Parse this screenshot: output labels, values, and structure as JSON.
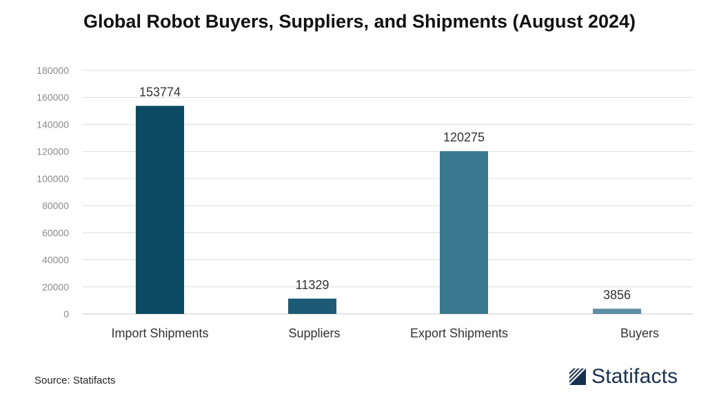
{
  "colors": {
    "bar_dark": "#0b4a63",
    "bar_mid": "#1d5a75",
    "bar_light": "#3a7890",
    "bar_lightest": "#5b8ea3",
    "grid": "#dcdcdc",
    "brand": "#17304f"
  },
  "footer": {
    "source": "Source: Statifacts",
    "brand_name": "Statifacts",
    "brand_icon": "statifacts-logo-icon"
  },
  "chart_data": {
    "type": "bar",
    "title": "Global Robot Buyers, Suppliers, and Shipments (August 2024)",
    "xlabel": "",
    "ylabel": "",
    "categories": [
      "Import Shipments",
      "Suppliers",
      "Export Shipments",
      "Buyers"
    ],
    "values": [
      153774,
      11329,
      120275,
      3856
    ],
    "ylim": [
      0,
      180000
    ],
    "yticks": [
      0,
      20000,
      40000,
      60000,
      80000,
      100000,
      120000,
      140000,
      160000,
      180000
    ],
    "grid": true,
    "legend": "none",
    "data_labels": true
  }
}
